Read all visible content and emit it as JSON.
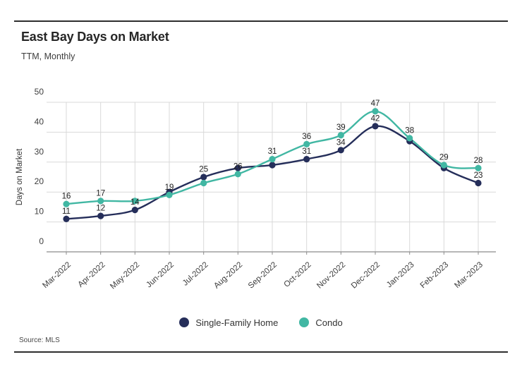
{
  "header": {
    "title": "East Bay Days on Market",
    "subtitle": "TTM, Monthly"
  },
  "chart_data": {
    "type": "line",
    "title": "East Bay Days on Market",
    "subtitle": "TTM, Monthly",
    "ylabel": "Days on Market",
    "xlabel": "",
    "ylim": [
      0,
      50
    ],
    "yticks": [
      0,
      10,
      20,
      30,
      40,
      50
    ],
    "grid": true,
    "smooth_lines": true,
    "legend_position": "bottom",
    "categories": [
      "Mar-2022",
      "Apr-2022",
      "May-2022",
      "Jun-2022",
      "Jul-2022",
      "Aug-2022",
      "Sep-2022",
      "Oct-2022",
      "Nov-2022",
      "Dec-2022",
      "Jan-2023",
      "Feb-2023",
      "Mar-2023"
    ],
    "series": [
      {
        "name": "Single-Family Home",
        "color": "#252e5a",
        "values": [
          11,
          12,
          14,
          20,
          25,
          28,
          29,
          31,
          34,
          42,
          37,
          28,
          23
        ],
        "point_labels": [
          "11",
          "12",
          "14",
          "",
          "25",
          "",
          "",
          "31",
          "34",
          "42",
          "",
          "",
          "23"
        ]
      },
      {
        "name": "Condo",
        "color": "#41b7a3",
        "values": [
          16,
          17,
          17,
          19,
          23,
          26,
          31,
          36,
          39,
          47,
          38,
          29,
          28
        ],
        "point_labels": [
          "16",
          "17",
          "",
          "19",
          "",
          "26",
          "31",
          "36",
          "39",
          "47",
          "38",
          "29",
          "28"
        ]
      }
    ]
  },
  "footer": {
    "source": "Source: MLS"
  }
}
